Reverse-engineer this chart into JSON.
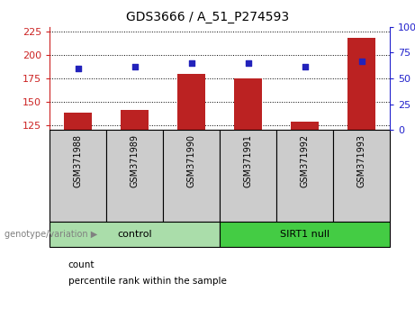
{
  "title": "GDS3666 / A_51_P274593",
  "samples": [
    "GSM371988",
    "GSM371989",
    "GSM371990",
    "GSM371991",
    "GSM371992",
    "GSM371993"
  ],
  "counts": [
    138,
    141,
    180,
    175,
    129,
    218
  ],
  "percentiles": [
    60,
    61,
    65,
    65,
    61,
    67
  ],
  "ylim_left": [
    120,
    230
  ],
  "ylim_right": [
    0,
    100
  ],
  "yticks_left": [
    125,
    150,
    175,
    200,
    225
  ],
  "yticks_right": [
    0,
    25,
    50,
    75,
    100
  ],
  "bar_color": "#bb2222",
  "dot_color": "#2222bb",
  "bg_xticklabel": "#cccccc",
  "bg_control": "#aaddaa",
  "bg_sirt1": "#44cc44",
  "control_label": "control",
  "sirt1_label": "SIRT1 null",
  "genotype_label": "genotype/variation",
  "legend_count": "count",
  "legend_percentile": "percentile rank within the sample",
  "left_axis_color": "#cc2222",
  "right_axis_color": "#2222cc",
  "title_fontsize": 10,
  "tick_fontsize": 8,
  "sample_fontsize": 7,
  "legend_fontsize": 7.5
}
